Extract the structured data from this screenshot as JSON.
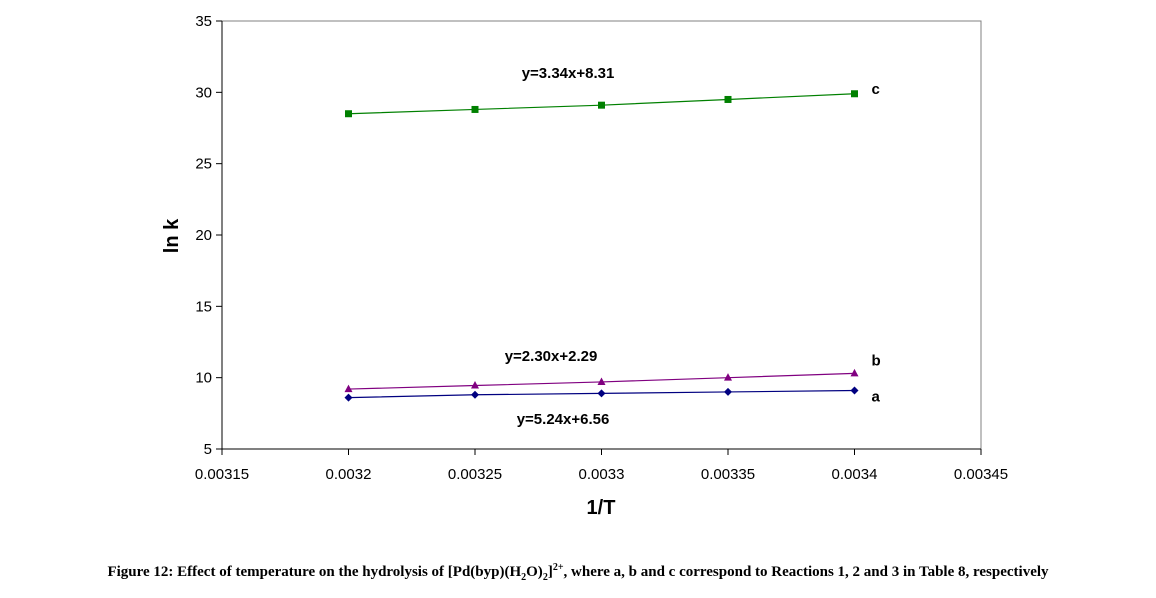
{
  "chart_data": {
    "type": "line",
    "xlabel": "1/T",
    "ylabel": "ln k",
    "xlim": [
      0.00315,
      0.00345
    ],
    "ylim": [
      5,
      35
    ],
    "xticks": [
      "0.00315",
      "0.0032",
      "0.00325",
      "0.0033",
      "0.00335",
      "0.0034",
      "0.00345"
    ],
    "yticks": [
      "5",
      "10",
      "15",
      "20",
      "25",
      "30",
      "35"
    ],
    "grid": false,
    "x": [
      0.0032,
      0.00325,
      0.0033,
      0.00335,
      0.0034
    ],
    "series": [
      {
        "name": "a",
        "marker": "diamond",
        "color": "#000080",
        "values": [
          8.6,
          8.8,
          8.9,
          9.0,
          9.1
        ],
        "equation": "y=5.24x+6.56"
      },
      {
        "name": "b",
        "marker": "triangle",
        "color": "#800080",
        "values": [
          9.2,
          9.45,
          9.7,
          10.0,
          10.3
        ],
        "equation": "y=2.30x+2.29"
      },
      {
        "name": "c",
        "marker": "square",
        "color": "#008000",
        "values": [
          28.5,
          28.8,
          29.1,
          29.5,
          29.9
        ],
        "equation": "y=3.34x+8.31"
      }
    ]
  },
  "caption": {
    "prefix": "Figure 12: Effect of temperature on the hydrolysis of [Pd(byp)(H",
    "sub1": "2",
    "mid": "O)",
    "sub2": "2",
    "close": "]",
    "sup": "2+",
    "suffix": ", where a, b and c correspond to Reactions 1, 2 and 3 in Table 8, respectively"
  }
}
